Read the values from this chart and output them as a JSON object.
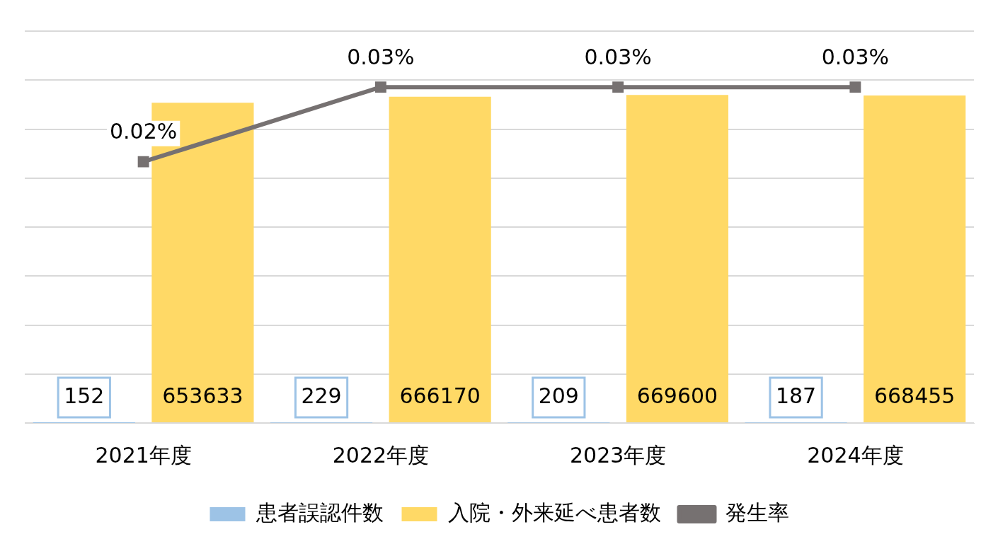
{
  "chart_data": {
    "type": "bar",
    "categories": [
      "2021年度",
      "2022年度",
      "2023年度",
      "2024年度"
    ],
    "series": [
      {
        "name": "患者誤認件数",
        "color": "#9dc3e6",
        "values": [
          152,
          229,
          209,
          187
        ]
      },
      {
        "name": "入院・外来延べ患者数",
        "color": "#ffd966",
        "values": [
          653633,
          666170,
          669600,
          668455
        ]
      },
      {
        "name": "発生率",
        "type": "line",
        "axis": "y2",
        "color": "#767171",
        "marker": "square",
        "values": [
          0.02,
          0.03,
          0.03,
          0.03
        ],
        "value_labels": [
          "0.02%",
          "0.03%",
          "0.03%",
          "0.03%"
        ]
      }
    ],
    "ylim": [
      0,
      800000
    ],
    "yticks": [
      {
        "value": 0,
        "label": null
      },
      {
        "value": 100000,
        "label": null
      },
      {
        "value": 200000,
        "label": null
      },
      {
        "value": 300000,
        "label": null
      },
      {
        "value": 400000,
        "label": null
      },
      {
        "value": 500000,
        "label": null
      },
      {
        "value": 600000,
        "label": null
      },
      {
        "value": 700000,
        "label": null
      },
      {
        "value": 800000,
        "label": null
      }
    ],
    "y2lim": [
      -0.015,
      0.0375
    ],
    "tick_labels": "x",
    "grid": "y",
    "legend": "bottom",
    "data_labels": true
  }
}
